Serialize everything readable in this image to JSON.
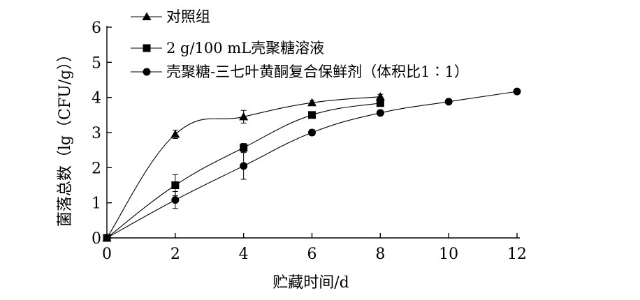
{
  "chart_data": {
    "type": "line",
    "xlabel": "贮藏时间/d",
    "ylabel": "菌落总数（lg（CFU/g））",
    "xlim": [
      0,
      12
    ],
    "ylim": [
      0,
      6
    ],
    "xticks": [
      0,
      2,
      4,
      6,
      8,
      10,
      12
    ],
    "yticks": [
      0,
      1,
      2,
      3,
      4,
      5,
      6
    ],
    "grid": false,
    "legend_position": "top-left",
    "series": [
      {
        "name": "对照组",
        "marker": "triangle",
        "x": [
          0,
          2,
          4,
          6,
          8
        ],
        "y": [
          0.0,
          2.95,
          3.45,
          3.85,
          4.02
        ],
        "err": [
          0.03,
          0.12,
          0.18,
          0.06,
          0.07
        ]
      },
      {
        "name": "2 g/100 mL壳聚糖溶液",
        "marker": "square",
        "x": [
          0,
          2,
          4,
          6,
          8
        ],
        "y": [
          0.0,
          1.5,
          2.57,
          3.5,
          3.84
        ],
        "err": [
          0.03,
          0.3,
          0.12,
          0.08,
          0.07
        ]
      },
      {
        "name": "壳聚糖-三七叶黄酮复合保鲜剂（体积比1∶1）",
        "marker": "circle",
        "x": [
          0,
          2,
          4,
          6,
          8,
          10,
          12
        ],
        "y": [
          0.0,
          1.08,
          2.05,
          3.0,
          3.56,
          3.88,
          4.17
        ],
        "err": [
          0.03,
          0.24,
          0.38,
          0.08,
          0.05,
          0.04,
          0.06
        ]
      }
    ]
  }
}
